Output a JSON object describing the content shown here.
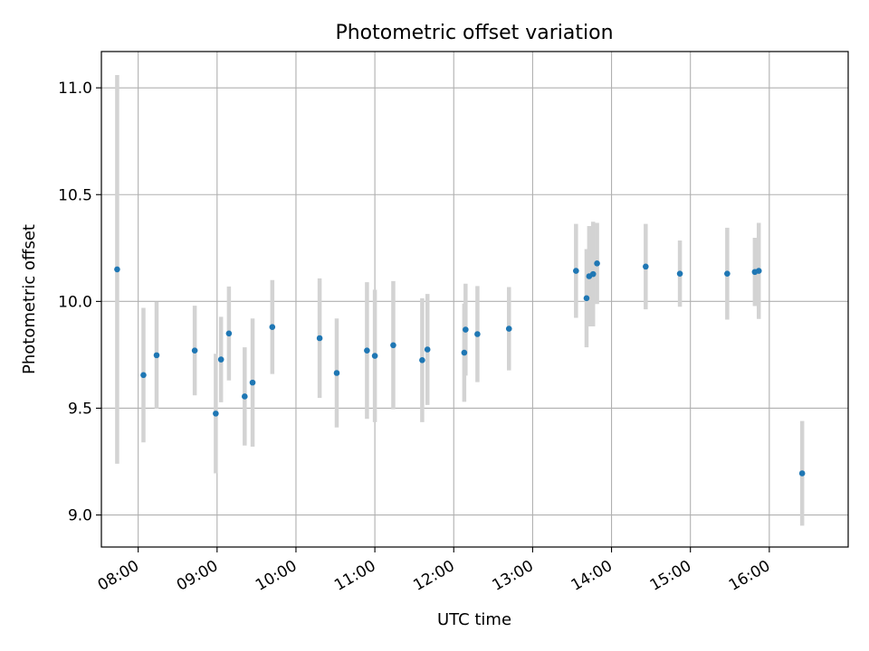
{
  "chart_data": {
    "type": "scatter",
    "title": "Photometric offset variation",
    "xlabel": "UTC time",
    "ylabel": "Photometric offset",
    "xlim": [
      "07:32",
      "17:00"
    ],
    "ylim": [
      8.85,
      11.17
    ],
    "x_ticks": [
      "08:00",
      "09:00",
      "10:00",
      "11:00",
      "12:00",
      "13:00",
      "14:00",
      "15:00",
      "16:00"
    ],
    "y_ticks": [
      "9.0",
      "9.5",
      "10.0",
      "10.5",
      "11.0"
    ],
    "grid": true,
    "marker_color": "#1f77b4",
    "errorbar_color": "#d3d3d3",
    "points": [
      {
        "x": "07:44",
        "y": 10.15,
        "err": 0.91
      },
      {
        "x": "08:04",
        "y": 9.655,
        "err": 0.315
      },
      {
        "x": "08:14",
        "y": 9.748,
        "err": 0.25
      },
      {
        "x": "08:43",
        "y": 9.77,
        "err": 0.21
      },
      {
        "x": "08:59",
        "y": 9.475,
        "err": 0.28
      },
      {
        "x": "09:03",
        "y": 9.728,
        "err": 0.2
      },
      {
        "x": "09:09",
        "y": 9.85,
        "err": 0.22
      },
      {
        "x": "09:21",
        "y": 9.555,
        "err": 0.23
      },
      {
        "x": "09:27",
        "y": 9.62,
        "err": 0.3
      },
      {
        "x": "09:42",
        "y": 9.88,
        "err": 0.22
      },
      {
        "x": "10:18",
        "y": 9.828,
        "err": 0.28
      },
      {
        "x": "10:31",
        "y": 9.665,
        "err": 0.255
      },
      {
        "x": "10:54",
        "y": 9.77,
        "err": 0.32
      },
      {
        "x": "11:00",
        "y": 9.745,
        "err": 0.31
      },
      {
        "x": "11:14",
        "y": 9.795,
        "err": 0.3
      },
      {
        "x": "11:36",
        "y": 9.725,
        "err": 0.29
      },
      {
        "x": "11:40",
        "y": 9.775,
        "err": 0.26
      },
      {
        "x": "12:08",
        "y": 9.76,
        "err": 0.23
      },
      {
        "x": "12:09",
        "y": 9.868,
        "err": 0.215
      },
      {
        "x": "12:18",
        "y": 9.847,
        "err": 0.225
      },
      {
        "x": "12:42",
        "y": 9.872,
        "err": 0.195
      },
      {
        "x": "13:33",
        "y": 10.143,
        "err": 0.22
      },
      {
        "x": "13:41",
        "y": 10.015,
        "err": 0.23
      },
      {
        "x": "13:43",
        "y": 10.118,
        "err": 0.235
      },
      {
        "x": "13:46",
        "y": 10.128,
        "err": 0.245
      },
      {
        "x": "13:49",
        "y": 10.178,
        "err": 0.19
      },
      {
        "x": "14:26",
        "y": 10.163,
        "err": 0.2
      },
      {
        "x": "14:52",
        "y": 10.13,
        "err": 0.155
      },
      {
        "x": "15:28",
        "y": 10.13,
        "err": 0.215
      },
      {
        "x": "15:49",
        "y": 10.138,
        "err": 0.16
      },
      {
        "x": "15:52",
        "y": 10.143,
        "err": 0.225
      },
      {
        "x": "16:25",
        "y": 9.195,
        "err": 0.245
      }
    ]
  }
}
